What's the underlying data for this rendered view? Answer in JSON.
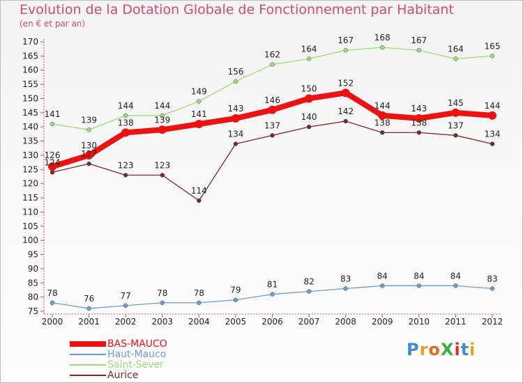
{
  "header": {
    "title": "Evolution de la Dotation Globale de Fonctionnement par Habitant",
    "subtitle": "(en € et par an)"
  },
  "logo": {
    "text": "ProXiti",
    "colors": [
      "#3e8bd1",
      "#e6a21d",
      "#e6691f",
      "#3cae3e",
      "#d9302f",
      "#3e8bd1",
      "#e6a21d"
    ]
  },
  "chart_data": {
    "type": "line",
    "title": "Evolution de la Dotation Globale de Fonctionnement par Habitant",
    "subtitle": "(en € et par an)",
    "xlabel": "",
    "ylabel": "",
    "x": [
      "2000",
      "2001",
      "2002",
      "2003",
      "2004",
      "2005",
      "2006",
      "2007",
      "2008",
      "2009",
      "2010",
      "2011",
      "2012"
    ],
    "ylim": [
      75,
      170
    ],
    "yticks": [
      75,
      80,
      85,
      90,
      95,
      100,
      105,
      110,
      115,
      120,
      125,
      130,
      135,
      140,
      145,
      150,
      155,
      160,
      165,
      170
    ],
    "legend_position": "bottom-left",
    "series": [
      {
        "name": "BAS-MAUCO",
        "color": "#ee1111",
        "values": [
          126,
          130,
          138,
          139,
          141,
          143,
          146,
          150,
          152,
          144,
          143,
          145,
          144
        ]
      },
      {
        "name": "Haut-Mauco",
        "color": "#6c9dcf",
        "values": [
          78,
          76,
          77,
          78,
          78,
          79,
          81,
          82,
          83,
          84,
          84,
          84,
          83
        ]
      },
      {
        "name": "Saint-Sever",
        "color": "#99dd77",
        "values": [
          141,
          139,
          144,
          144,
          149,
          156,
          162,
          164,
          167,
          168,
          167,
          164,
          165
        ]
      },
      {
        "name": "Aurice",
        "color": "#7a2a2a",
        "values": [
          124,
          127,
          123,
          123,
          114,
          134,
          137,
          140,
          142,
          138,
          138,
          137,
          134
        ]
      }
    ]
  }
}
